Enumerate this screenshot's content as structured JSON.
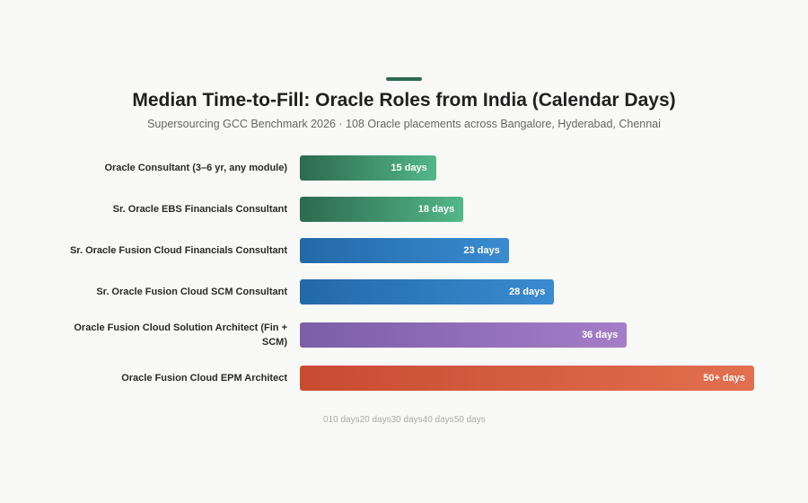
{
  "chart_data": {
    "type": "bar",
    "orientation": "horizontal",
    "title": "Median Time-to-Fill: Oracle Roles from India (Calendar Days)",
    "subtitle": "Supersourcing GCC Benchmark 2026 · 108 Oracle placements across Bangalore, Hyderabad, Chennai",
    "categories": [
      "Oracle Consultant (3–6 yr, any module)",
      "Sr. Oracle EBS Financials Consultant",
      "Sr. Oracle Fusion Cloud Financials Consultant",
      "Sr. Oracle Fusion Cloud SCM Consultant",
      "Oracle Fusion Cloud Solution Architect (Fin + SCM)",
      "Oracle Fusion Cloud EPM Architect"
    ],
    "values": [
      15,
      18,
      23,
      28,
      36,
      50
    ],
    "value_labels": [
      "15 days",
      "18 days",
      "23 days",
      "28 days",
      "36 days",
      "50+ days"
    ],
    "colors": [
      [
        "#2d6a4f",
        "#52b788"
      ],
      [
        "#2d6a4f",
        "#52b788"
      ],
      [
        "#2369a8",
        "#3a8bd0"
      ],
      [
        "#2369a8",
        "#3a8bd0"
      ],
      [
        "#7b5ea7",
        "#a57ec8"
      ],
      [
        "#c84b31",
        "#e2704f"
      ]
    ],
    "xlim": [
      0,
      50
    ],
    "xticks": [
      0,
      {
        "value": 10,
        "label": "10 days"
      },
      {
        "value": 20,
        "label": "20 days"
      },
      {
        "value": 30,
        "label": "30 days"
      },
      {
        "value": 40,
        "label": "40 days"
      },
      {
        "value": 50,
        "label": "50 days"
      }
    ]
  }
}
